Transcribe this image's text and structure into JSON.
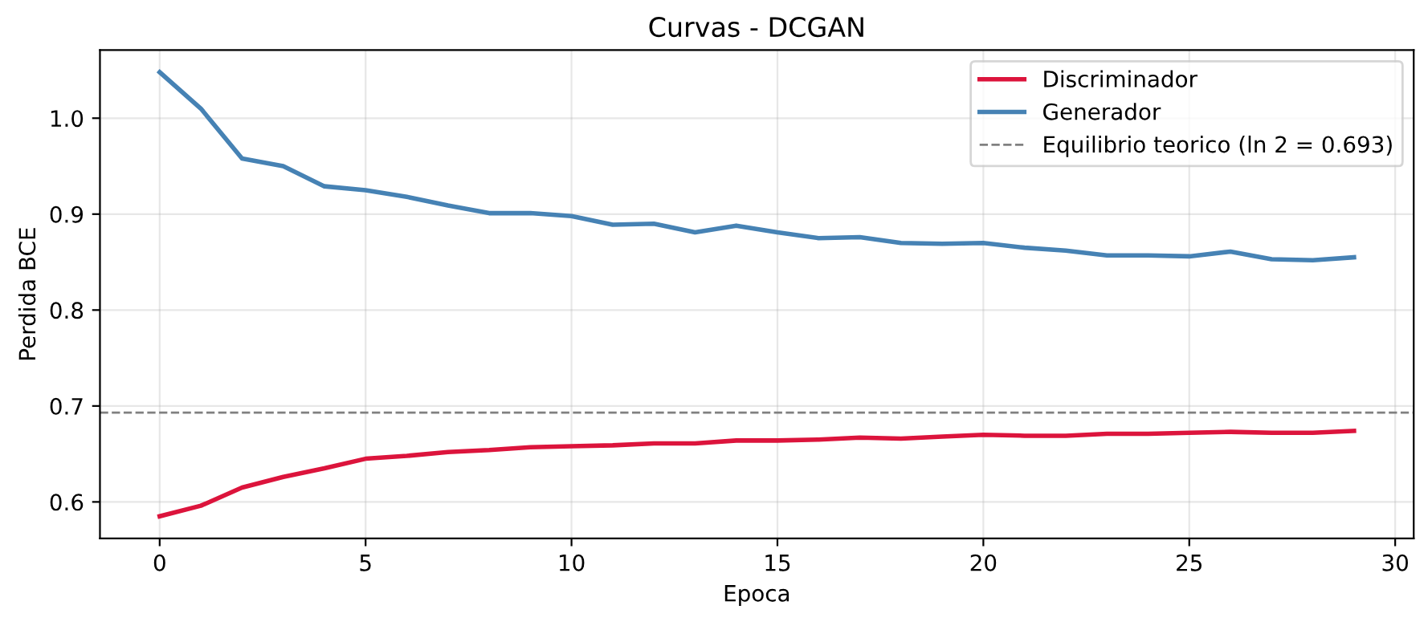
{
  "chart_data": {
    "type": "line",
    "title": "Curvas - DCGAN",
    "xlabel": "Epoca",
    "ylabel": "Perdida BCE",
    "x": [
      0,
      1,
      2,
      3,
      4,
      5,
      6,
      7,
      8,
      9,
      10,
      11,
      12,
      13,
      14,
      15,
      16,
      17,
      18,
      19,
      20,
      21,
      22,
      23,
      24,
      25,
      26,
      27,
      28,
      29
    ],
    "series": [
      {
        "name": "Discriminador",
        "color": "#dc143c",
        "values": [
          0.585,
          0.596,
          0.615,
          0.626,
          0.635,
          0.645,
          0.648,
          0.652,
          0.654,
          0.657,
          0.658,
          0.659,
          0.661,
          0.661,
          0.664,
          0.664,
          0.665,
          0.667,
          0.666,
          0.668,
          0.67,
          0.669,
          0.669,
          0.671,
          0.671,
          0.672,
          0.673,
          0.672,
          0.672,
          0.674
        ]
      },
      {
        "name": "Generador",
        "color": "#4682b4",
        "values": [
          1.048,
          1.01,
          0.958,
          0.95,
          0.929,
          0.925,
          0.918,
          0.909,
          0.901,
          0.901,
          0.898,
          0.889,
          0.89,
          0.881,
          0.888,
          0.881,
          0.875,
          0.876,
          0.87,
          0.869,
          0.87,
          0.865,
          0.862,
          0.857,
          0.857,
          0.856,
          0.861,
          0.853,
          0.852,
          0.855
        ]
      }
    ],
    "ref_lines": [
      {
        "axis": "y",
        "value": 0.693,
        "label": "Equilibrio teorico (ln 2 = 0.693)",
        "color": "#808080",
        "line_style": "dashed"
      }
    ],
    "xlim": [
      -1.45,
      30.45
    ],
    "ylim": [
      0.562,
      1.071
    ],
    "xticks": [
      0,
      5,
      10,
      15,
      20,
      25,
      30
    ],
    "yticks": [
      0.6,
      0.7,
      0.8,
      0.9,
      {
        "value": 1.0,
        "label": "1.0"
      }
    ],
    "grid": true,
    "legend": "top right",
    "marker": "none",
    "line_style": "solid"
  }
}
